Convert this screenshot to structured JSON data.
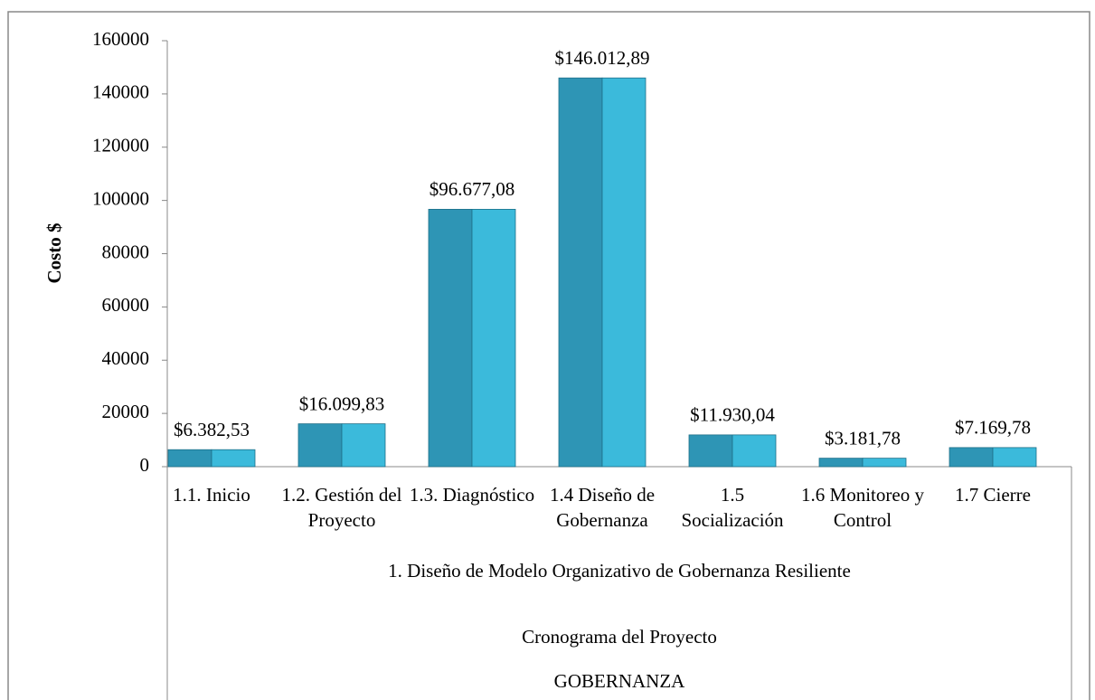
{
  "chart_data": {
    "type": "bar",
    "y_label": "Costo $",
    "categories": [
      "1.1. Inicio",
      "1.2. Gestión del Proyecto",
      "1.3. Diagnóstico",
      "1.4 Diseño de Gobernanza",
      "1.5 Socialización",
      "1.6 Monitoreo y Control",
      "1.7 Cierre"
    ],
    "group_labels": [
      "1. Diseño de Modelo Organizativo de Gobernanza Resiliente",
      "Cronograma del Proyecto",
      "GOBERNANZA"
    ],
    "values": [
      6382.53,
      16099.83,
      96677.08,
      146012.89,
      11930.04,
      3181.78,
      7169.78
    ],
    "value_labels": [
      "$6.382,53",
      "$16.099,83",
      "$96.677,08",
      "$146.012,89",
      "$11.930,04",
      "$3.181,78",
      "$7.169,78"
    ],
    "color": "#2e95b5",
    "ylim": [
      0,
      160000
    ],
    "yticks": [
      0,
      20000,
      40000,
      60000,
      80000,
      100000,
      120000,
      140000,
      160000
    ]
  }
}
